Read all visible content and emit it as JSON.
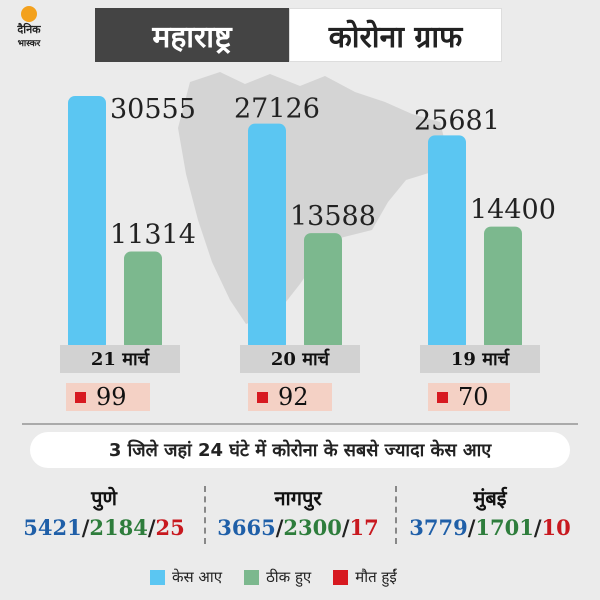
{
  "brand": {
    "line1": "दैनिक",
    "line2": "भास्कर"
  },
  "header": {
    "left": "महाराष्ट्र",
    "right": "कोरोना ग्राफ"
  },
  "colors": {
    "cases": "#5bc6f2",
    "recovered": "#7cb88e",
    "deaths": "#d71920",
    "death_box": "#f4d1c5"
  },
  "chart_data": {
    "type": "bar",
    "title": "",
    "categories": [
      "21 मार्च",
      "20 मार्च",
      "19 मार्च"
    ],
    "series": [
      {
        "name": "केस आए",
        "values": [
          30555,
          27126,
          25681
        ]
      },
      {
        "name": "ठीक हुए",
        "values": [
          11314,
          13588,
          14400
        ]
      }
    ],
    "deaths": [
      99,
      92,
      70
    ],
    "ylim": [
      0,
      35000
    ],
    "grid": false,
    "legend": "bottom"
  },
  "districts": {
    "heading": "3 जिले जहां 24 घंटे में कोरोना के सबसे ज्यादा केस आए",
    "items": [
      {
        "name": "पुणे",
        "cases": "5421",
        "recovered": "2184",
        "deaths": "25"
      },
      {
        "name": "नागपुर",
        "cases": "3665",
        "recovered": "2300",
        "deaths": "17"
      },
      {
        "name": "मुंबई",
        "cases": "3779",
        "recovered": "1701",
        "deaths": "10"
      }
    ]
  },
  "legend": [
    {
      "label": "केस आए",
      "color": "#5bc6f2"
    },
    {
      "label": "ठीक हुए",
      "color": "#7cb88e"
    },
    {
      "label": "मौत हुईं",
      "color": "#d71920"
    }
  ]
}
